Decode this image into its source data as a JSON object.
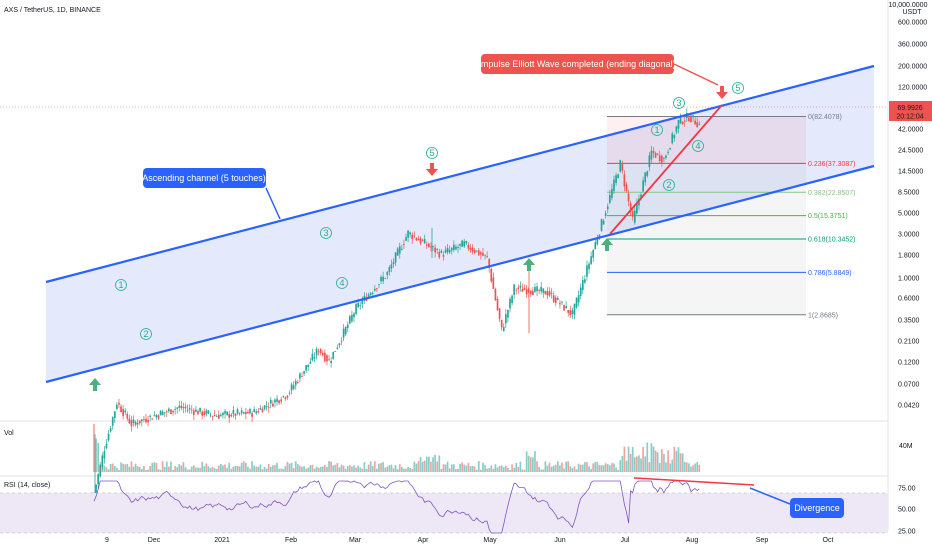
{
  "header": {
    "symbol": "AXS / TetherUS, 1D, BINANCE"
  },
  "price_axis": {
    "unit_line1": "10,000.0000",
    "unit_line2": "USDT",
    "ticks": [
      "600.0000",
      "360.0000",
      "200.0000",
      "120.0000",
      "42.0000",
      "24.5000",
      "14.5000",
      "8.5000",
      "5.0000",
      "3.0000",
      "1.8000",
      "1.0000",
      "0.6000",
      "0.3500",
      "0.2100",
      "0.1200",
      "0.0700",
      "0.0420"
    ],
    "last_price": "69.9926",
    "countdown": "20:12:04",
    "price_label_color": "#ef5350"
  },
  "time_axis": {
    "ticks": [
      "9",
      "Dec",
      "2021",
      "Feb",
      "Mar",
      "Apr",
      "May",
      "Jun",
      "Jul",
      "Aug",
      "Sep",
      "Oct"
    ]
  },
  "volume_pane": {
    "label": "Vol",
    "axis_tick": "40M"
  },
  "rsi_pane": {
    "label": "RSI (14, close)",
    "ticks": [
      "75.00",
      "50.00",
      "25.00"
    ],
    "divergence_label": "Divergence"
  },
  "annotations": {
    "channel_label": "Ascending channel (5 touches)",
    "impulse_label": "Impulse Elliott Wave completed (ending diagonal)",
    "wave_labels_1": [
      "1",
      "2",
      "3",
      "4",
      "5"
    ],
    "wave_labels_2": [
      "1",
      "2",
      "3",
      "4",
      "5"
    ]
  },
  "fib_levels": [
    {
      "label": "0(82.4078)",
      "color": "#787b86"
    },
    {
      "label": "0.236(37.3087)",
      "color": "#f23645"
    },
    {
      "label": "0.382(22.8507)",
      "color": "#81c784"
    },
    {
      "label": "0.5(15.3751)",
      "color": "#4caf50"
    },
    {
      "label": "0.618(10.3452)",
      "color": "#089981"
    },
    {
      "label": "0.786(5.8849)",
      "color": "#2962ff"
    },
    {
      "label": "1(2.8685)",
      "color": "#787b86"
    }
  ],
  "colors": {
    "up": "#26a69a",
    "down": "#ef5350",
    "channel": "#2962ff",
    "channel_fill": "#dbe3fb",
    "rsi_line": "#7e57c2",
    "rsi_band": "#ede7f6",
    "divergence": "#f23645",
    "callout_blue": "#2962ff",
    "callout_red": "#ef5350",
    "arrow_green": "#4caf7d",
    "arrow_red": "#ef5350"
  },
  "chart_data": {
    "type": "candlestick",
    "symbol": "AXS / TetherUS",
    "timeframe": "1D",
    "exchange": "BINANCE",
    "yscale": "log",
    "ylim": [
      0.03,
      10000
    ],
    "x_ticks": [
      "9",
      "Dec",
      "2021",
      "Feb",
      "Mar",
      "Apr",
      "May",
      "Jun",
      "Jul",
      "Aug",
      "Sep",
      "Oct"
    ],
    "price_path": [
      {
        "date": "2020-11-04",
        "close": 0.14
      },
      {
        "date": "2020-11-09",
        "close": 0.3
      },
      {
        "date": "2020-11-15",
        "close": 0.65
      },
      {
        "date": "2020-11-22",
        "close": 0.45
      },
      {
        "date": "2020-11-30",
        "close": 0.5
      },
      {
        "date": "2020-12-15",
        "close": 0.6
      },
      {
        "date": "2021-01-01",
        "close": 0.52
      },
      {
        "date": "2021-01-20",
        "close": 0.55
      },
      {
        "date": "2021-02-05",
        "close": 0.75
      },
      {
        "date": "2021-02-20",
        "close": 1.6
      },
      {
        "date": "2021-02-25",
        "close": 1.3
      },
      {
        "date": "2021-03-10",
        "close": 3.2
      },
      {
        "date": "2021-03-25",
        "close": 5.8
      },
      {
        "date": "2021-04-04",
        "close": 11.5
      },
      {
        "date": "2021-04-20",
        "close": 8.0
      },
      {
        "date": "2021-05-01",
        "close": 9.5
      },
      {
        "date": "2021-05-12",
        "close": 7.5
      },
      {
        "date": "2021-05-19",
        "close": 2.2
      },
      {
        "date": "2021-05-25",
        "close": 4.5
      },
      {
        "date": "2021-06-10",
        "close": 4.2
      },
      {
        "date": "2021-06-22",
        "close": 2.87
      },
      {
        "date": "2021-07-05",
        "close": 12
      },
      {
        "date": "2021-07-15",
        "close": 37
      },
      {
        "date": "2021-07-21",
        "close": 14
      },
      {
        "date": "2021-07-30",
        "close": 45
      },
      {
        "date": "2021-08-05",
        "close": 40
      },
      {
        "date": "2021-08-12",
        "close": 75
      },
      {
        "date": "2021-08-17",
        "close": 82.4
      },
      {
        "date": "2021-08-23",
        "close": 69.99
      }
    ],
    "volume_axis_tick": "40M",
    "rsi": {
      "period": 14,
      "source": "close",
      "ticks": [
        75,
        50,
        25
      ],
      "band": [
        30,
        70
      ]
    }
  }
}
